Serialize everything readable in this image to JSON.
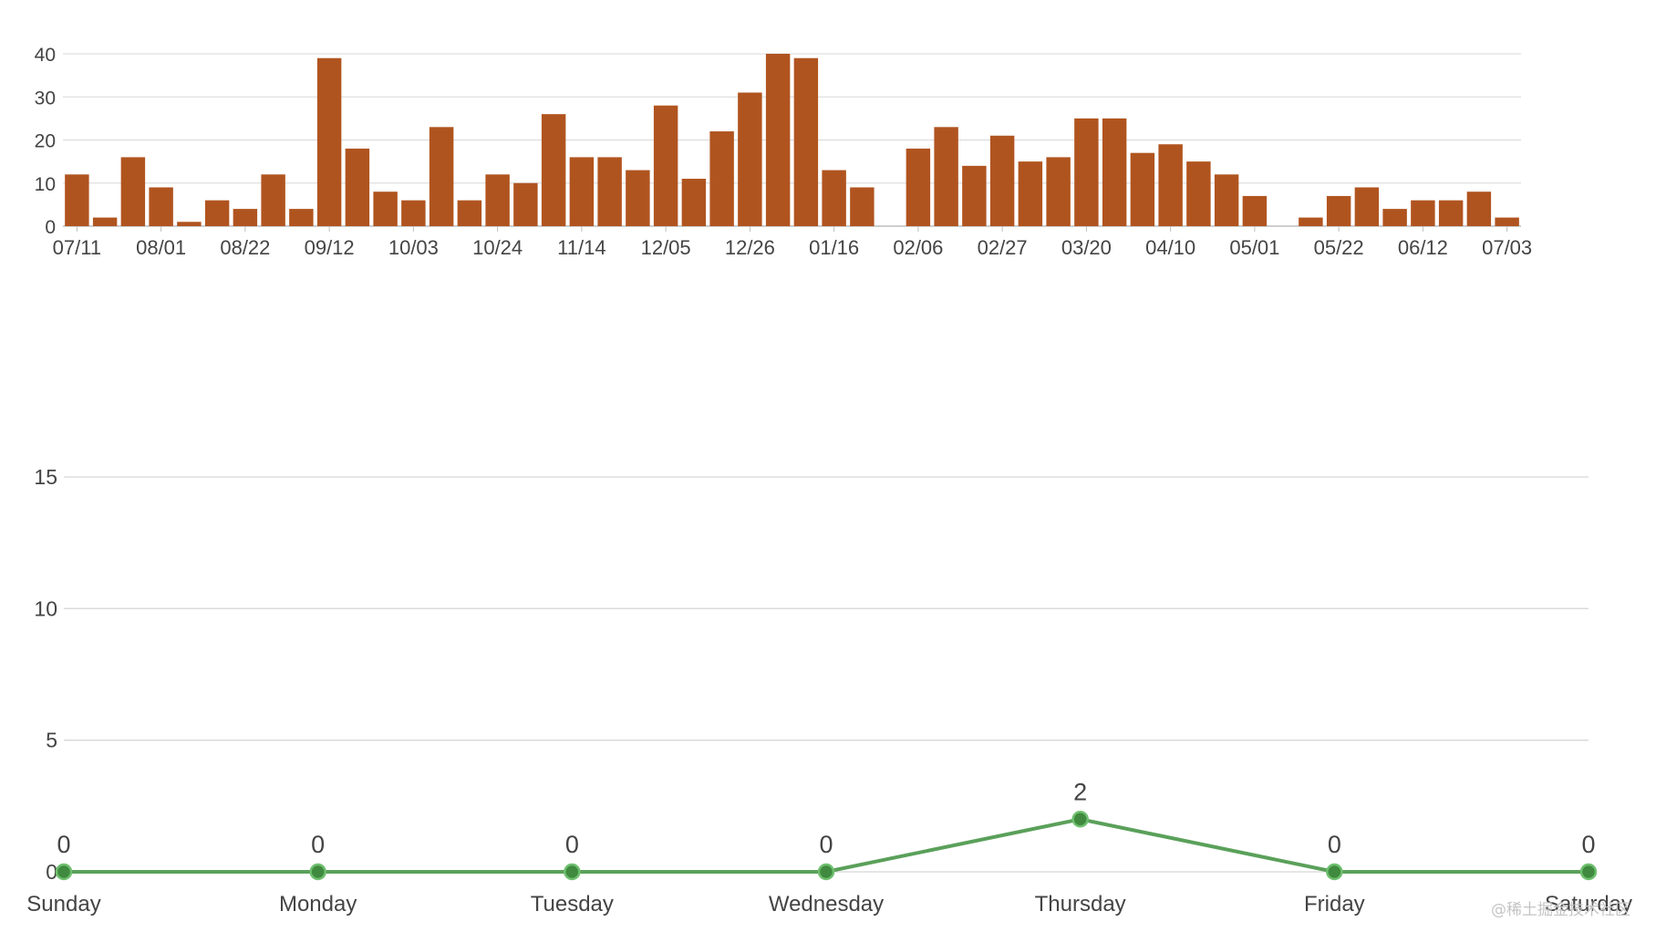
{
  "chart_data": [
    {
      "type": "bar",
      "title": "",
      "xlabel": "",
      "ylabel": "",
      "ylim": [
        0,
        40
      ],
      "yticks": [
        0,
        10,
        20,
        30,
        40
      ],
      "grid": true,
      "legend": "none",
      "bar_color": "#b0541f",
      "highlight_color": "#c73a3f",
      "highlight_index": 52,
      "x_tick_labels": [
        "07/11",
        "08/01",
        "08/22",
        "09/12",
        "10/03",
        "10/24",
        "11/14",
        "12/05",
        "12/26",
        "01/16",
        "02/06",
        "02/27",
        "03/20",
        "04/10",
        "05/01",
        "05/22",
        "06/12",
        "07/03"
      ],
      "x_tick_every": 3,
      "values": [
        12,
        2,
        16,
        9,
        1,
        6,
        4,
        12,
        4,
        39,
        18,
        8,
        6,
        23,
        6,
        12,
        10,
        26,
        16,
        16,
        13,
        28,
        11,
        22,
        31,
        40,
        39,
        13,
        9,
        0,
        18,
        23,
        14,
        21,
        15,
        16,
        25,
        25,
        17,
        19,
        15,
        12,
        7,
        0,
        2,
        7,
        9,
        4,
        6,
        6,
        8,
        2
      ]
    },
    {
      "type": "line",
      "title": "",
      "xlabel": "",
      "ylabel": "",
      "categories": [
        "Sunday",
        "Monday",
        "Tuesday",
        "Wednesday",
        "Thursday",
        "Friday",
        "Saturday"
      ],
      "values": [
        0,
        0,
        0,
        0,
        2,
        0,
        0
      ],
      "ylim": [
        0,
        18
      ],
      "yticks": [
        0,
        5,
        10,
        15
      ],
      "grid": true,
      "legend": "none",
      "line_color": "#5aa05a",
      "marker_color": "#3f8a3f",
      "data_labels": true
    }
  ],
  "watermark": "@稀土掘金技术社区"
}
